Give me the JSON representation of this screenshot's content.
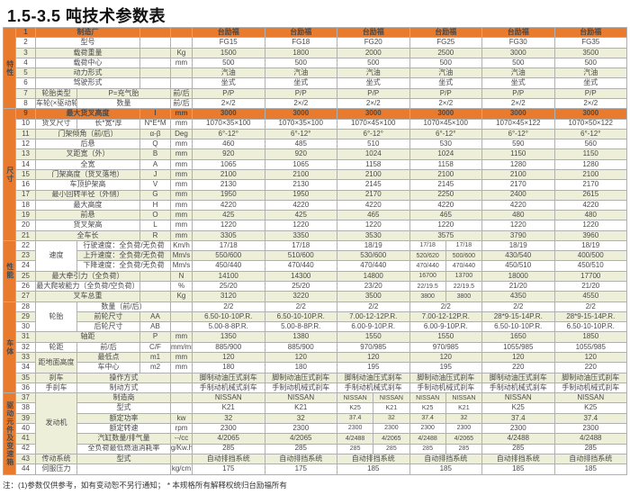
{
  "title": "1.5-3.5 吨技术参数表",
  "footnote": "注：(1)参数仅供参考，如有变动恕不另行通知； * 本规格所有解释权统归台励福所有",
  "colors": {
    "orange": "#e87b2d",
    "dark_red_text": "#8f3512",
    "pale_row": "#edefd9",
    "border": "#b0b0b0"
  },
  "table": {
    "groups": [
      {
        "label": "特性",
        "start": 1,
        "span": 8
      },
      {
        "label": "尺寸",
        "start": 9,
        "span": 13
      },
      {
        "label": "性能",
        "start": 22,
        "span": 6
      },
      {
        "label": "车体",
        "start": 28,
        "span": 9
      },
      {
        "label": "驱动元件及变速箱",
        "start": 37,
        "span": 8
      }
    ],
    "rows": [
      {
        "n": 1,
        "l1": "制造厂",
        "m": true,
        "sym": "",
        "unit": "",
        "hl": true,
        "c": [
          "台励福",
          "台励福",
          "台励福",
          "台励福",
          "台励福",
          "台励福"
        ]
      },
      {
        "n": 2,
        "l1": "型号",
        "m": true,
        "sym": "",
        "unit": "",
        "c": [
          "FG15",
          "FG18",
          "FG20",
          "FG25",
          "FG30",
          "FG35"
        ]
      },
      {
        "n": 3,
        "l1": "载荷重量",
        "m": true,
        "sym": "",
        "unit": "Kg",
        "c": [
          "1500",
          "1800",
          "2000",
          "2500",
          "3000",
          "3500"
        ]
      },
      {
        "n": 4,
        "l1": "载荷中心",
        "m": true,
        "sym": "",
        "unit": "mm",
        "c": [
          "500",
          "500",
          "500",
          "500",
          "500",
          "500"
        ]
      },
      {
        "n": 5,
        "l1": "动力形式",
        "m": true,
        "sym": "",
        "unit": "",
        "c": [
          "汽油",
          "汽油",
          "汽油",
          "汽油",
          "汽油",
          "汽油"
        ]
      },
      {
        "n": 6,
        "l1": "驾驶形式",
        "m": true,
        "sym": "",
        "unit": "",
        "c": [
          "坐式",
          "坐式",
          "坐式",
          "坐式",
          "坐式",
          "坐式"
        ]
      },
      {
        "n": 7,
        "l1": "轮胎类型",
        "l2": "P=充气胎",
        "sym": "",
        "unit": "前/后",
        "c": [
          "P/P",
          "P/P",
          "P/P",
          "P/P",
          "P/P",
          "P/P"
        ]
      },
      {
        "n": 8,
        "l1": "车轮(×驱动轮)",
        "l2": "数量",
        "sym": "",
        "unit": "前/后",
        "c": [
          "2×/2",
          "2×/2",
          "2×/2",
          "2×/2",
          "2×/2",
          "2×/2"
        ]
      },
      {
        "n": 9,
        "l1": "最大货叉高度",
        "m": true,
        "sym": "l",
        "unit": "mm",
        "hl": true,
        "c": [
          "3000",
          "3000",
          "3000",
          "3000",
          "3000",
          "3000"
        ]
      },
      {
        "n": 10,
        "l1": "货叉尺寸",
        "l2": "长*宽*厚",
        "sym": "N*E*M",
        "unit": "mm",
        "c": [
          "1070×35×100",
          "1070×35×100",
          "1070×45×100",
          "1070×45×100",
          "1070×45×122",
          "1070×50×122"
        ]
      },
      {
        "n": 11,
        "l1": "门架倾角（前/后）",
        "m": true,
        "sym": "α-β",
        "unit": "Deg",
        "c": [
          "6°-12°",
          "6°-12°",
          "6°-12°",
          "6°-12°",
          "6°-12°",
          "6°-12°"
        ]
      },
      {
        "n": 12,
        "l1": "后悬",
        "m": true,
        "sym": "Q",
        "unit": "mm",
        "c": [
          "460",
          "485",
          "510",
          "530",
          "590",
          "560"
        ]
      },
      {
        "n": 13,
        "l1": "叉距宽（外）",
        "m": true,
        "sym": "B",
        "unit": "mm",
        "c": [
          "920",
          "920",
          "1024",
          "1024",
          "1150",
          "1150"
        ]
      },
      {
        "n": 14,
        "l1": "全宽",
        "m": true,
        "sym": "A",
        "unit": "mm",
        "c": [
          "1065",
          "1065",
          "1158",
          "1158",
          "1280",
          "1280"
        ]
      },
      {
        "n": 15,
        "l1": "门架高度（货叉落地）",
        "m": true,
        "sym": "J",
        "unit": "mm",
        "c": [
          "2100",
          "2100",
          "2100",
          "2100",
          "2100",
          "2100"
        ]
      },
      {
        "n": 16,
        "l1": "车顶护架高",
        "m": true,
        "sym": "V",
        "unit": "mm",
        "c": [
          "2130",
          "2130",
          "2145",
          "2145",
          "2170",
          "2170"
        ]
      },
      {
        "n": 17,
        "l1": "最小回转半径（外侧）",
        "m": true,
        "sym": "G",
        "unit": "mm",
        "c": [
          "1950",
          "1950",
          "2170",
          "2250",
          "2400",
          "2615"
        ]
      },
      {
        "n": 18,
        "l1": "最大高度",
        "m": true,
        "sym": "H",
        "unit": "mm",
        "c": [
          "4220",
          "4220",
          "4220",
          "4220",
          "4220",
          "4220"
        ]
      },
      {
        "n": 19,
        "l1": "前悬",
        "m": true,
        "sym": "O",
        "unit": "mm",
        "c": [
          "425",
          "425",
          "465",
          "465",
          "480",
          "480"
        ]
      },
      {
        "n": 20,
        "l1": "货叉架高",
        "m": true,
        "sym": "L",
        "unit": "mm",
        "c": [
          "1220",
          "1220",
          "1220",
          "1220",
          "1220",
          "1220"
        ]
      },
      {
        "n": 21,
        "l1": "全车长",
        "m": true,
        "sym": "R",
        "unit": "mm",
        "c": [
          "3305",
          "3350",
          "3530",
          "3575",
          "3790",
          "3960"
        ]
      },
      {
        "n": 22,
        "l1": "速度",
        "rs": 3,
        "l2": "行驶速度：全负荷/无负荷",
        "sym": "",
        "unit": "Km/h",
        "c": [
          "17/18",
          "17/18",
          "18/19",
          [
            "17/18",
            "17/18"
          ],
          "18/19",
          "18/19"
        ]
      },
      {
        "n": 23,
        "cov": true,
        "l2": "上升速度：全负荷/无负荷",
        "sym": "",
        "unit": "Mm/s",
        "c": [
          "550/600",
          "510/600",
          "530/600",
          [
            "520/620",
            "500/600"
          ],
          "430/540",
          "400/500"
        ]
      },
      {
        "n": 24,
        "cov": true,
        "l2": "下降速度：全负荷/无负荷",
        "sym": "",
        "unit": "Mm/s",
        "c": [
          "450/440",
          "470/440",
          "470/440",
          [
            "470/440",
            "470/440"
          ],
          "450/510",
          "450/510"
        ]
      },
      {
        "n": 25,
        "l1": "最大牵引力（全负荷）",
        "m": true,
        "sym": "",
        "unit": "N",
        "c": [
          "14100",
          "14300",
          "14800",
          [
            "16700",
            "13700"
          ],
          "18000",
          "17700"
        ]
      },
      {
        "n": 26,
        "l1": "最大爬坡能力（全负荷/空负荷）",
        "m": true,
        "sym": "",
        "unit": "%",
        "c": [
          "25/20",
          "25/20",
          "23/20",
          [
            "22/19.5",
            "22/19.5"
          ],
          "21/20",
          "21/20"
        ]
      },
      {
        "n": 27,
        "l1": "叉车总重",
        "m": true,
        "sym": "",
        "unit": "Kg",
        "c": [
          "3120",
          "3220",
          "3500",
          [
            "3800",
            "3800"
          ],
          "4350",
          "4550"
        ]
      },
      {
        "n": 28,
        "l1": "轮胎",
        "rs": 3,
        "l2": "数量（前/后）",
        "sym": "",
        "unit": "",
        "c": [
          "2/2",
          "2/2",
          "2/2",
          "2/2",
          "2/2",
          "2/2"
        ]
      },
      {
        "n": 29,
        "cov": true,
        "l2": "前轮尺寸",
        "sym": "AA",
        "unit": "",
        "c": [
          "6.50-10-10P.R.",
          "6.50-10-10P.R.",
          "7.00-12-12P.R.",
          "7.00-12-12P.R.",
          "28*9-15-14P.R.",
          "28*9-15-14P.R."
        ]
      },
      {
        "n": 30,
        "cov": true,
        "l2": "后轮尺寸",
        "sym": "AB",
        "unit": "",
        "c": [
          "5.00-8-8P.R.",
          "5.00-8-8P.R.",
          "6.00-9-10P.R.",
          "6.00-9-10P.R.",
          "6.50-10-10P.R.",
          "6.50-10-10P.R."
        ]
      },
      {
        "n": 31,
        "l1": "轴距",
        "m": true,
        "sym": "P",
        "unit": "mm",
        "c": [
          "1350",
          "1380",
          "1550",
          "1550",
          "1650",
          "1850"
        ]
      },
      {
        "n": 32,
        "l1": "轮距",
        "l2": "前/后",
        "sym": "C/F",
        "unit": "mm/mm",
        "c": [
          "885/900",
          "885/900",
          "970/985",
          "970/985",
          "1055/985",
          "1055/985"
        ]
      },
      {
        "n": 33,
        "l1": "距地面高度",
        "rs": 2,
        "l2": "最低点",
        "sym": "m1",
        "unit": "mm",
        "c": [
          "120",
          "120",
          "120",
          "120",
          "120",
          "120"
        ]
      },
      {
        "n": 34,
        "cov": true,
        "l2": "车中心",
        "sym": "m2",
        "unit": "mm",
        "c": [
          "180",
          "180",
          "195",
          "195",
          "220",
          "220"
        ]
      },
      {
        "n": 35,
        "l1": "刹车",
        "l2": "操作方式",
        "sym": "",
        "unit": "",
        "c": [
          "脚制动油压式刹车",
          "脚制动油压式刹车",
          "脚制动油压式刹车",
          "脚制动油压式刹车",
          "脚制动油压式刹车",
          "脚制动油压式刹车"
        ]
      },
      {
        "n": 36,
        "l1": "手刹车",
        "l2": "制动方式",
        "sym": "",
        "unit": "",
        "c": [
          "手制动机械式刹车",
          "手制动机械式刹车",
          "手制动机械式刹车",
          "手制动机械式刹车",
          "手制动机械式刹车",
          "手制动机械式刹车"
        ]
      },
      {
        "n": 37,
        "l1": "发动机",
        "rs": 6,
        "l2": "制造商",
        "sym": "",
        "unit": "",
        "c": [
          "NISSAN",
          "NISSAN",
          [
            "NISSAN",
            "NISSAN"
          ],
          [
            "NISSAN",
            "NISSAN"
          ],
          "NISSAN",
          "NISSAN"
        ]
      },
      {
        "n": 38,
        "cov": true,
        "l2": "型式",
        "sym": "",
        "unit": "",
        "c": [
          "K21",
          "K21",
          [
            "K25",
            "K21"
          ],
          [
            "K25",
            "K21"
          ],
          "K25",
          "K25"
        ]
      },
      {
        "n": 39,
        "cov": true,
        "l2": "额定功率",
        "sym": "",
        "unit": "kw",
        "c": [
          "32",
          "32",
          [
            "37.4",
            "32"
          ],
          [
            "37.4",
            "32"
          ],
          "37.4",
          "37.4"
        ]
      },
      {
        "n": 40,
        "cov": true,
        "l2": "额定转速",
        "sym": "",
        "unit": "rpm",
        "c": [
          "2300",
          "2300",
          [
            "2300",
            "2300"
          ],
          [
            "2300",
            "2300"
          ],
          "2300",
          "2300"
        ]
      },
      {
        "n": 41,
        "cov": true,
        "l2": "汽缸数量/排气量",
        "sym": "",
        "unit": "--/cc",
        "c": [
          "4/2065",
          "4/2065",
          [
            "4/2488",
            "4/2065"
          ],
          [
            "4/2488",
            "4/2065"
          ],
          "4/2488",
          "4/2488"
        ]
      },
      {
        "n": 42,
        "cov": true,
        "l2": "全负荷最低燃油消耗率",
        "sym": "",
        "unit": "g/Kw.h",
        "c": [
          "285",
          "285",
          [
            "285",
            "285"
          ],
          [
            "285",
            "285"
          ],
          "285",
          "285"
        ]
      },
      {
        "n": 43,
        "l1": "传动系统",
        "l2": "型式",
        "sym": "",
        "unit": "",
        "c": [
          "自动排挡系统",
          "自动排挡系统",
          "自动排挡系统",
          "自动排挡系统",
          "自动排挡系统",
          "自动排挡系统"
        ]
      },
      {
        "n": 44,
        "l1": "伺服压力",
        "l2": "",
        "sym": "",
        "unit": "kg/cm",
        "c": [
          "175",
          "175",
          "185",
          "185",
          "185",
          "185"
        ]
      }
    ]
  }
}
